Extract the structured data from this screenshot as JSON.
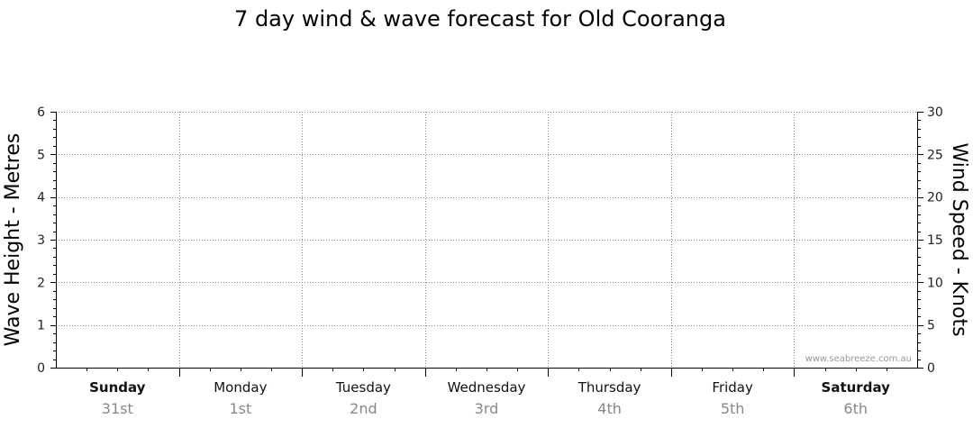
{
  "chart_data": {
    "type": "line",
    "title": "7 day wind & wave forecast for Old Cooranga",
    "ylabel_left": "Wave Height - Metres",
    "ylabel_right": "Wind Speed - Knots",
    "ylim_left": [
      0,
      6
    ],
    "yticks_left": [
      0,
      1,
      2,
      3,
      4,
      5,
      6
    ],
    "ylim_right": [
      0,
      30
    ],
    "yticks_right": [
      0,
      5,
      10,
      15,
      20,
      25,
      30
    ],
    "grid": true,
    "categories": [
      {
        "day": "Sunday",
        "date": "31st",
        "bold": true
      },
      {
        "day": "Monday",
        "date": "1st",
        "bold": false
      },
      {
        "day": "Tuesday",
        "date": "2nd",
        "bold": false
      },
      {
        "day": "Wednesday",
        "date": "3rd",
        "bold": false
      },
      {
        "day": "Thursday",
        "date": "4th",
        "bold": false
      },
      {
        "day": "Friday",
        "date": "5th",
        "bold": false
      },
      {
        "day": "Saturday",
        "date": "6th",
        "bold": true
      }
    ],
    "series": []
  },
  "watermark": "www.seabreeze.com.au",
  "colors": {
    "axis": "#000000",
    "grid": "#888888",
    "date_text": "#888888",
    "watermark": "#999999"
  }
}
